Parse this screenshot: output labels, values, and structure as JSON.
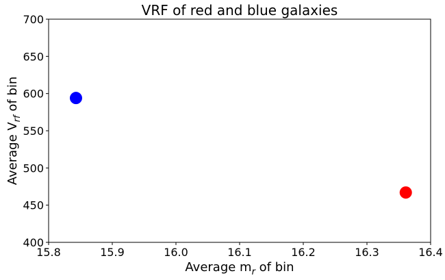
{
  "chart_data": {
    "type": "scatter",
    "title": "VRF of red and blue galaxies",
    "xlabel": {
      "prefix": "Average m",
      "sub": "r",
      "suffix": " of bin"
    },
    "ylabel": {
      "prefix": "Average V",
      "sub": "rf",
      "suffix": " of bin"
    },
    "xlim": [
      15.8,
      16.4
    ],
    "ylim": [
      400,
      700
    ],
    "xticks": [
      "15.8",
      "15.9",
      "16.0",
      "16.1",
      "16.2",
      "16.3",
      "16.4"
    ],
    "yticks": [
      "400",
      "450",
      "500",
      "550",
      "600",
      "650",
      "700"
    ],
    "grid": false,
    "points": [
      {
        "x": 15.843,
        "y": 594,
        "color": "#0000ff"
      },
      {
        "x": 16.361,
        "y": 467,
        "color": "#ff0000"
      }
    ]
  }
}
